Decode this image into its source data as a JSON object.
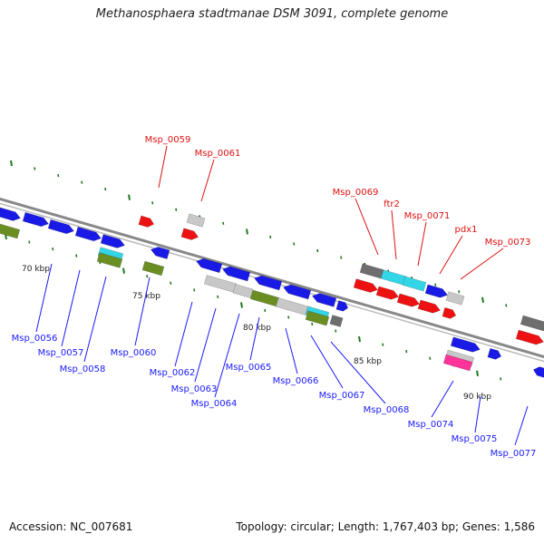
{
  "title": "Methanosphaera stadtmanae DSM 3091, complete genome",
  "footer": {
    "accession": "Accession: NC_007681",
    "topology": "Topology: circular; Length: 1,767,403 bp; Genes: 1,586"
  },
  "colors": {
    "blue": "#1a1ae6",
    "red": "#ee1111",
    "grey_light": "#c8c8c8",
    "grey_dark": "#6e6e6e",
    "olive": "#6b8e23",
    "cyan": "#33d6e6",
    "pink": "#ff3399",
    "tick_green": "#1f7a1f",
    "label_blue": "#1a1aff",
    "label_red": "#dd1111",
    "backbone": "#888888"
  },
  "scale_labels": [
    "70 kbp",
    "75 kbp",
    "80 kbp",
    "85 kbp",
    "90 kbp"
  ],
  "gene_labels": {
    "top": [
      "Msp_0059",
      "Msp_0061",
      "Msp_0069",
      "ftr2",
      "Msp_0071",
      "pdx1",
      "Msp_0073"
    ],
    "bottom": [
      "Msp_0056",
      "Msp_0057",
      "Msp_0058",
      "Msp_0060",
      "Msp_0062",
      "Msp_0063",
      "Msp_0064",
      "Msp_0065",
      "Msp_0066",
      "Msp_0067",
      "Msp_0068",
      "Msp_0074",
      "Msp_0075",
      "Msp_0077"
    ]
  }
}
